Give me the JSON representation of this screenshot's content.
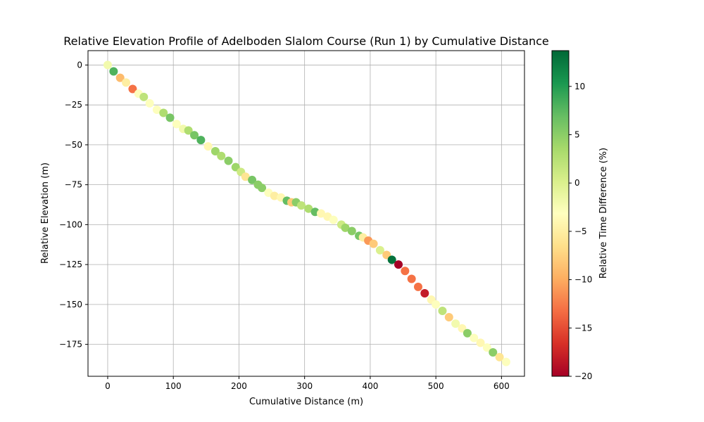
{
  "chart_data": {
    "type": "scatter",
    "title": "Relative Elevation Profile of Adelboden Slalom Course (Run 1) by Cumulative Distance",
    "xlabel": "Cumulative Distance (m)",
    "ylabel": "Relative Elevation (m)",
    "xlim": [
      -30,
      635
    ],
    "ylim": [
      -195,
      9
    ],
    "xticks": [
      0,
      100,
      200,
      300,
      400,
      500,
      600
    ],
    "yticks": [
      0,
      -25,
      -50,
      -75,
      -100,
      -125,
      -150,
      -175
    ],
    "grid": true,
    "colorbar": {
      "label": "Relative Time Difference (%)",
      "range": [
        -20,
        13.7
      ],
      "ticks": [
        10,
        5,
        0,
        -5,
        -10,
        -15,
        -20
      ],
      "colormap": "RdYlGn"
    },
    "points": [
      {
        "x": 0,
        "y": 0,
        "c": -2
      },
      {
        "x": 9,
        "y": -4,
        "c": 8
      },
      {
        "x": 19,
        "y": -8,
        "c": -9
      },
      {
        "x": 28,
        "y": -11,
        "c": -5
      },
      {
        "x": 38,
        "y": -15,
        "c": -13
      },
      {
        "x": 47,
        "y": -18,
        "c": -3
      },
      {
        "x": 55,
        "y": -20,
        "c": 2
      },
      {
        "x": 64,
        "y": -24,
        "c": -3
      },
      {
        "x": 75,
        "y": -28,
        "c": -3
      },
      {
        "x": 85,
        "y": -30,
        "c": 3
      },
      {
        "x": 95,
        "y": -33,
        "c": 6
      },
      {
        "x": 105,
        "y": -37,
        "c": -3
      },
      {
        "x": 115,
        "y": -40,
        "c": -2
      },
      {
        "x": 123,
        "y": -41,
        "c": 3
      },
      {
        "x": 132,
        "y": -44,
        "c": 6
      },
      {
        "x": 142,
        "y": -47,
        "c": 8
      },
      {
        "x": 153,
        "y": -51,
        "c": -4
      },
      {
        "x": 164,
        "y": -54,
        "c": 4
      },
      {
        "x": 173,
        "y": -57,
        "c": 3
      },
      {
        "x": 184,
        "y": -60,
        "c": 5
      },
      {
        "x": 195,
        "y": -64,
        "c": 4
      },
      {
        "x": 203,
        "y": -67,
        "c": 1
      },
      {
        "x": 210,
        "y": -70,
        "c": -6
      },
      {
        "x": 220,
        "y": -72,
        "c": 6
      },
      {
        "x": 229,
        "y": -75,
        "c": 5
      },
      {
        "x": 235,
        "y": -77,
        "c": 5
      },
      {
        "x": 245,
        "y": -80,
        "c": -3
      },
      {
        "x": 254,
        "y": -82,
        "c": -5
      },
      {
        "x": 264,
        "y": -83,
        "c": -4
      },
      {
        "x": 273,
        "y": -85,
        "c": 7
      },
      {
        "x": 280,
        "y": -86,
        "c": -8
      },
      {
        "x": 287,
        "y": -86,
        "c": 5
      },
      {
        "x": 295,
        "y": -88,
        "c": 2
      },
      {
        "x": 306,
        "y": -90,
        "c": 3
      },
      {
        "x": 316,
        "y": -92,
        "c": 7
      },
      {
        "x": 325,
        "y": -93,
        "c": -4
      },
      {
        "x": 335,
        "y": -95,
        "c": -4
      },
      {
        "x": 344,
        "y": -97,
        "c": -3
      },
      {
        "x": 356,
        "y": -100,
        "c": 1
      },
      {
        "x": 362,
        "y": -102,
        "c": 4
      },
      {
        "x": 372,
        "y": -104,
        "c": 5
      },
      {
        "x": 383,
        "y": -107,
        "c": 6
      },
      {
        "x": 389,
        "y": -108,
        "c": -5
      },
      {
        "x": 397,
        "y": -110,
        "c": -11
      },
      {
        "x": 405,
        "y": -112,
        "c": -8
      },
      {
        "x": 415,
        "y": -116,
        "c": 0
      },
      {
        "x": 425,
        "y": -119,
        "c": -8
      },
      {
        "x": 433,
        "y": -122,
        "c": 13
      },
      {
        "x": 443,
        "y": -125,
        "c": -20
      },
      {
        "x": 453,
        "y": -129,
        "c": -13
      },
      {
        "x": 463,
        "y": -134,
        "c": -13
      },
      {
        "x": 473,
        "y": -139,
        "c": -13
      },
      {
        "x": 483,
        "y": -143,
        "c": -18
      },
      {
        "x": 493,
        "y": -147,
        "c": -4
      },
      {
        "x": 500,
        "y": -150,
        "c": -3
      },
      {
        "x": 510,
        "y": -154,
        "c": 2
      },
      {
        "x": 520,
        "y": -158,
        "c": -8
      },
      {
        "x": 530,
        "y": -162,
        "c": -2
      },
      {
        "x": 540,
        "y": -165,
        "c": -4
      },
      {
        "x": 548,
        "y": -168,
        "c": 5
      },
      {
        "x": 558,
        "y": -171,
        "c": -3
      },
      {
        "x": 568,
        "y": -174,
        "c": -4
      },
      {
        "x": 578,
        "y": -177,
        "c": -3
      },
      {
        "x": 587,
        "y": -180,
        "c": 5
      },
      {
        "x": 597,
        "y": -183,
        "c": -6
      },
      {
        "x": 607,
        "y": -186,
        "c": -3
      }
    ]
  }
}
